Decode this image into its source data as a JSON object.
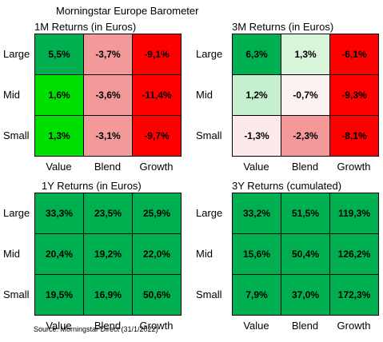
{
  "header": {
    "title": "Morningstar Europe Barometer"
  },
  "footer": {
    "source": "Source: Morningstar Direct (31/1/2022)"
  },
  "palette": {
    "bright_green": "#00e000",
    "dark_green": "#00b050",
    "light_green": "#c6efce",
    "very_light_pink": "#fde9e9",
    "pink": "#f4999a",
    "light_pink": "#f2b8b8",
    "red": "#ff0000",
    "white": "#ffffff"
  },
  "chart_data": [
    {
      "type": "heatmap",
      "title": "1M Returns (in Euros)",
      "rows": [
        "Large",
        "Mid",
        "Small"
      ],
      "columns": [
        "Value",
        "Blend",
        "Growth"
      ],
      "values": [
        [
          5.5,
          -3.7,
          -9.1
        ],
        [
          1.6,
          -3.6,
          -11.4
        ],
        [
          1.3,
          -3.1,
          -9.7
        ]
      ],
      "labels": [
        [
          "5,5%",
          "-3,7%",
          "-9,1%"
        ],
        [
          "1,6%",
          "-3,6%",
          "-11,4%"
        ],
        [
          "1,3%",
          "-3,1%",
          "-9,7%"
        ]
      ],
      "colors": [
        [
          "#00b050",
          "#f4999a",
          "#ff0000"
        ],
        [
          "#00e000",
          "#f4999a",
          "#ff0000"
        ],
        [
          "#00e000",
          "#f4999a",
          "#ff0000"
        ]
      ]
    },
    {
      "type": "heatmap",
      "title": "3M Returns (in Euros)",
      "rows": [
        "Large",
        "Mid",
        "Small"
      ],
      "columns": [
        "Value",
        "Blend",
        "Growth"
      ],
      "values": [
        [
          6.3,
          1.3,
          -6.1
        ],
        [
          1.2,
          -0.7,
          -9.3
        ],
        [
          -1.3,
          -2.3,
          -8.1
        ]
      ],
      "labels": [
        [
          "6,3%",
          "1,3%",
          "-6,1%"
        ],
        [
          "1,2%",
          "-0,7%",
          "-9,3%"
        ],
        [
          "-1,3%",
          "-2,3%",
          "-8,1%"
        ]
      ],
      "colors": [
        [
          "#00b050",
          "#d9f5d9",
          "#ff0000"
        ],
        [
          "#c6efce",
          "#fdf2f2",
          "#ff0000"
        ],
        [
          "#fde9e9",
          "#f4999a",
          "#ff0000"
        ]
      ]
    },
    {
      "type": "heatmap",
      "title": "1Y Returns (in Euros)",
      "rows": [
        "Large",
        "Mid",
        "Small"
      ],
      "columns": [
        "Value",
        "Blend",
        "Growth"
      ],
      "values": [
        [
          33.3,
          23.5,
          25.9
        ],
        [
          20.4,
          19.2,
          22.0
        ],
        [
          19.5,
          16.9,
          50.6
        ]
      ],
      "labels": [
        [
          "33,3%",
          "23,5%",
          "25,9%"
        ],
        [
          "20,4%",
          "19,2%",
          "22,0%"
        ],
        [
          "19,5%",
          "16,9%",
          "50,6%"
        ]
      ],
      "colors": [
        [
          "#00b050",
          "#00b050",
          "#00b050"
        ],
        [
          "#00b050",
          "#00b050",
          "#00b050"
        ],
        [
          "#00b050",
          "#00b050",
          "#00b050"
        ]
      ]
    },
    {
      "type": "heatmap",
      "title": "3Y Returns (cumulated)",
      "rows": [
        "Large",
        "Mid",
        "Small"
      ],
      "columns": [
        "Value",
        "Blend",
        "Growth"
      ],
      "values": [
        [
          33.2,
          51.5,
          119.3
        ],
        [
          15.6,
          50.4,
          126.2
        ],
        [
          7.9,
          37.0,
          172.3
        ]
      ],
      "labels": [
        [
          "33,2%",
          "51,5%",
          "119,3%"
        ],
        [
          "15,6%",
          "50,4%",
          "126,2%"
        ],
        [
          "7,9%",
          "37,0%",
          "172,3%"
        ]
      ],
      "colors": [
        [
          "#00b050",
          "#00b050",
          "#00b050"
        ],
        [
          "#00b050",
          "#00b050",
          "#00b050"
        ],
        [
          "#00b050",
          "#00b050",
          "#00b050"
        ]
      ]
    }
  ]
}
